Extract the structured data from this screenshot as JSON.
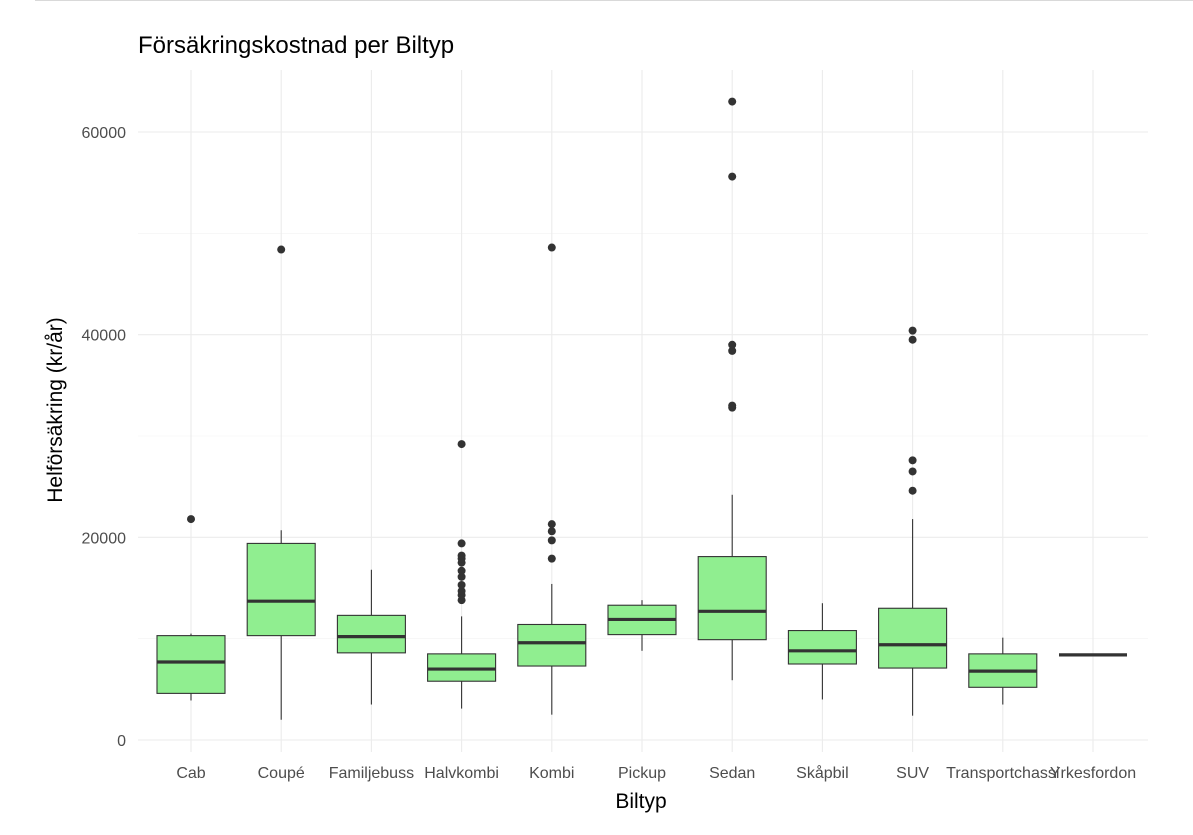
{
  "chart_data": {
    "type": "box",
    "title": "Försäkringskostnad per Biltyp",
    "xlabel": "Biltyp",
    "ylabel": "Helförsäkring (kr/år)",
    "ylim": [
      -1500,
      66000
    ],
    "yticks": [
      0,
      20000,
      40000,
      60000
    ],
    "ytick_labels": [
      "0",
      "20000",
      "40000",
      "60000"
    ],
    "grid": true,
    "box_fill": "#90ee90",
    "line_color": "#333333",
    "categories": [
      "Cab",
      "Coupé",
      "Familjebuss",
      "Halvkombi",
      "Kombi",
      "Pickup",
      "Sedan",
      "Skåpbil",
      "SUV",
      "Transportchassi",
      "Yrkesfordon"
    ],
    "boxes": [
      {
        "q1": 4600,
        "median": 7700,
        "q3": 10300,
        "whisker_low": 3900,
        "whisker_high": 10500,
        "outliers": [
          21800
        ]
      },
      {
        "q1": 10300,
        "median": 13700,
        "q3": 19400,
        "whisker_low": 2000,
        "whisker_high": 20700,
        "outliers": [
          48400
        ]
      },
      {
        "q1": 8600,
        "median": 10200,
        "q3": 12300,
        "whisker_low": 3500,
        "whisker_high": 16800,
        "outliers": []
      },
      {
        "q1": 5800,
        "median": 7000,
        "q3": 8500,
        "whisker_low": 3100,
        "whisker_high": 12200,
        "outliers": [
          13800,
          14300,
          14700,
          15300,
          16100,
          16700,
          17500,
          17900,
          18200,
          19400,
          29200
        ]
      },
      {
        "q1": 7300,
        "median": 9600,
        "q3": 11400,
        "whisker_low": 2500,
        "whisker_high": 15400,
        "outliers": [
          17900,
          19700,
          20600,
          21300,
          48600
        ]
      },
      {
        "q1": 10400,
        "median": 11900,
        "q3": 13300,
        "whisker_low": 8800,
        "whisker_high": 13800,
        "outliers": []
      },
      {
        "q1": 9900,
        "median": 12700,
        "q3": 18100,
        "whisker_low": 5900,
        "whisker_high": 24200,
        "outliers": [
          32800,
          33000,
          38400,
          39000,
          55600,
          63000
        ]
      },
      {
        "q1": 7500,
        "median": 8800,
        "q3": 10800,
        "whisker_low": 4000,
        "whisker_high": 13500,
        "outliers": []
      },
      {
        "q1": 7100,
        "median": 9400,
        "q3": 13000,
        "whisker_low": 2400,
        "whisker_high": 21800,
        "outliers": [
          24600,
          26500,
          27600,
          39500,
          40400
        ]
      },
      {
        "q1": 5200,
        "median": 6800,
        "q3": 8500,
        "whisker_low": 3500,
        "whisker_high": 10100,
        "outliers": []
      },
      {
        "q1": 8400,
        "median": 8400,
        "q3": 8400,
        "whisker_low": 8400,
        "whisker_high": 8400,
        "outliers": []
      }
    ]
  }
}
